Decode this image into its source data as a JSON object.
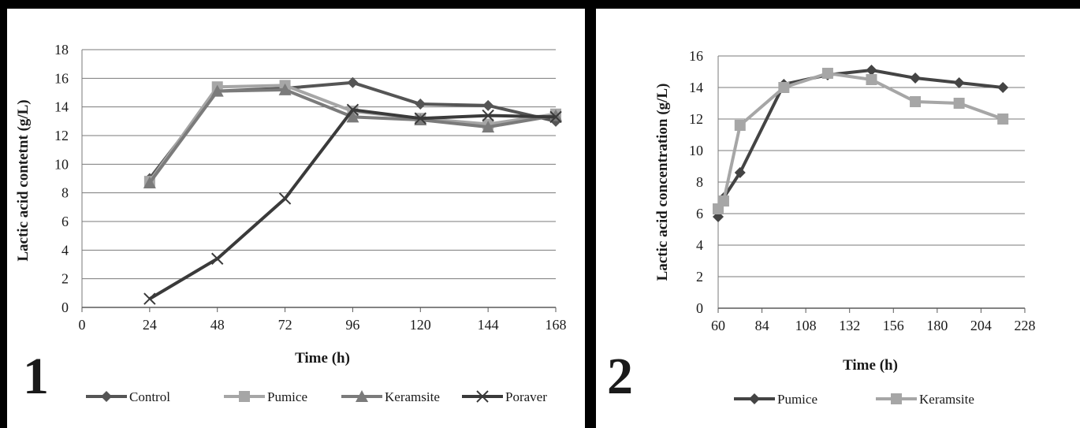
{
  "chart_data": [
    {
      "type": "line",
      "panel_label": "1",
      "xlabel": "Time (h)",
      "ylabel": "Lactic acid contetnt (g/L)",
      "xlim": [
        0,
        168
      ],
      "ylim": [
        0,
        18
      ],
      "xticks": [
        0,
        24,
        48,
        72,
        96,
        120,
        144,
        168
      ],
      "yticks": [
        0,
        2,
        4,
        6,
        8,
        10,
        12,
        14,
        16,
        18
      ],
      "grid": "horizontal",
      "legend_position": "bottom",
      "series": [
        {
          "name": "Control",
          "color": "#555555",
          "marker": "diamond",
          "x": [
            24,
            48,
            72,
            96,
            120,
            144,
            168
          ],
          "y": [
            9.0,
            15.1,
            15.3,
            15.7,
            14.2,
            14.1,
            13.0
          ]
        },
        {
          "name": "Pumice",
          "color": "#a6a6a6",
          "marker": "square",
          "x": [
            24,
            48,
            72,
            96,
            120,
            144,
            168
          ],
          "y": [
            8.8,
            15.4,
            15.5,
            13.7,
            13.2,
            12.8,
            13.5
          ]
        },
        {
          "name": "Keramsite",
          "color": "#7b7b7b",
          "marker": "triangle",
          "x": [
            24,
            48,
            72,
            96,
            120,
            144,
            168
          ],
          "y": [
            8.7,
            15.1,
            15.2,
            13.3,
            13.1,
            12.6,
            13.4
          ]
        },
        {
          "name": "Poraver",
          "color": "#3a3a3a",
          "marker": "x",
          "x": [
            24,
            48,
            72,
            96,
            120,
            144,
            168
          ],
          "y": [
            0.6,
            3.4,
            7.6,
            13.8,
            13.2,
            13.4,
            13.3
          ]
        }
      ]
    },
    {
      "type": "line",
      "panel_label": "2",
      "xlabel": "Time (h)",
      "ylabel": "Lactic acid concentration (g/L)",
      "xlim": [
        60,
        228
      ],
      "ylim": [
        0,
        16
      ],
      "xticks": [
        60,
        84,
        108,
        132,
        156,
        180,
        204,
        228
      ],
      "yticks": [
        0,
        2,
        4,
        6,
        8,
        10,
        12,
        14,
        16
      ],
      "grid": "horizontal",
      "legend_position": "bottom",
      "series": [
        {
          "name": "Pumice",
          "color": "#444444",
          "marker": "diamond",
          "x": [
            60,
            63,
            72,
            96,
            120,
            144,
            168,
            192,
            216
          ],
          "y": [
            5.8,
            7.0,
            8.6,
            14.2,
            14.8,
            15.1,
            14.6,
            14.3,
            14.0
          ]
        },
        {
          "name": "Keramsite",
          "color": "#a6a6a6",
          "marker": "square",
          "x": [
            60,
            63,
            72,
            96,
            120,
            144,
            168,
            192,
            216
          ],
          "y": [
            6.3,
            6.8,
            11.6,
            14.0,
            14.9,
            14.5,
            13.1,
            13.0,
            12.0
          ]
        }
      ]
    }
  ]
}
